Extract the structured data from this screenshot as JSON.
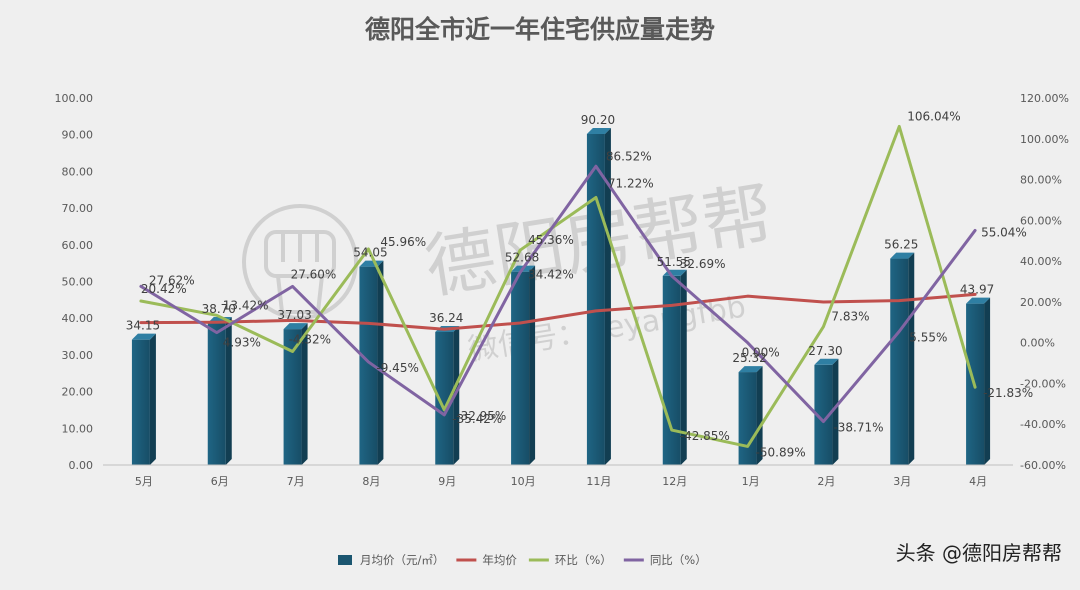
{
  "chart_data": {
    "type": "bar",
    "title": "德阳全市近一年住宅供应量走势",
    "categories": [
      "5月",
      "6月",
      "7月",
      "8月",
      "9月",
      "10月",
      "11月",
      "12月",
      "1月",
      "2月",
      "3月",
      "4月"
    ],
    "left_axis": {
      "min": 0,
      "max": 100,
      "step": 10,
      "tick_labels": [
        "0.00",
        "10.00",
        "20.00",
        "30.00",
        "40.00",
        "50.00",
        "60.00",
        "70.00",
        "80.00",
        "90.00",
        "100.00"
      ]
    },
    "right_axis": {
      "min": -60,
      "max": 120,
      "step": 20,
      "tick_labels": [
        "-60.00%",
        "-40.00%",
        "-20.00%",
        "0.00%",
        "20.00%",
        "40.00%",
        "60.00%",
        "80.00%",
        "100.00%",
        "120.00%"
      ]
    },
    "series": [
      {
        "name": "月均价（元/㎡）",
        "kind": "bar",
        "axis": "left",
        "color": "#1b5670",
        "values": [
          34.15,
          38.7,
          37.03,
          54.05,
          36.24,
          52.68,
          90.2,
          51.55,
          25.32,
          27.3,
          56.25,
          43.97
        ],
        "labels": [
          "34.15",
          "38.70",
          "37.03",
          "54.05",
          "36.24",
          "52.68",
          "90.20",
          "51.55",
          "25.32",
          "27.30",
          "56.25",
          "43.97"
        ]
      },
      {
        "name": "年均价",
        "kind": "line",
        "axis": "left",
        "color": "#c0504d",
        "values": [
          38.8,
          38.9,
          39.4,
          38.6,
          37.0,
          38.7,
          42.0,
          43.5,
          46.0,
          44.4,
          44.8,
          46.5
        ]
      },
      {
        "name": "环比（%）",
        "kind": "line",
        "axis": "right",
        "color": "#9bbb59",
        "values": [
          20.42,
          13.42,
          -4.32,
          45.96,
          -32.95,
          45.36,
          71.22,
          -42.85,
          -50.89,
          7.83,
          106.04,
          -21.83
        ],
        "labels": [
          "20.42%",
          "13.42%",
          "-4.32%",
          "45.96%",
          "-32.95%",
          "45.36%",
          "71.22%",
          "-42.85%",
          "-50.89%",
          "7.83%",
          "106.04%",
          "-21.83%"
        ]
      },
      {
        "name": "同比（%）",
        "kind": "line",
        "axis": "right",
        "color": "#8064a2",
        "values": [
          27.62,
          4.93,
          27.6,
          -9.45,
          -35.42,
          34.42,
          86.52,
          32.69,
          0.0,
          -38.71,
          5.55,
          55.04
        ],
        "labels": [
          "27.62%",
          "4.93%",
          "27.60%",
          "-9.45%",
          "-35.42%",
          "34.42%",
          "86.52%",
          "32.69%",
          "0.00%",
          "-38.71%",
          "5.55%",
          "55.04%"
        ]
      }
    ],
    "legend_position": "bottom",
    "grid": false,
    "watermark": "德阳房帮帮",
    "watermark_sub": "微信号：deyangfbb"
  },
  "footer": {
    "attribution": "头条 @德阳房帮帮"
  }
}
